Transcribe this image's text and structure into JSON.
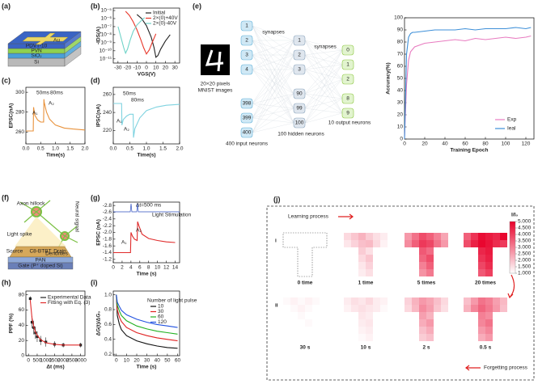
{
  "panel_labels": [
    "(a)",
    "(b)",
    "(c)",
    "(d)",
    "(e)",
    "(f)",
    "(g)",
    "(h)",
    "(i)",
    "(j)"
  ],
  "device": {
    "layers": [
      "Si",
      "SiO₂",
      "PVN",
      "PDVT-10"
    ],
    "electrode": "Au"
  },
  "network": {
    "image_caption": [
      "20×20 pixels",
      "MNIST images"
    ],
    "input": {
      "nodes": [
        "1",
        "2",
        "3",
        "4",
        "398",
        "399",
        "400"
      ],
      "label": "400 input neurons"
    },
    "hidden": {
      "nodes": [
        "1",
        "2",
        "3",
        "90",
        "99",
        "100"
      ],
      "label": "100 hidden neurons"
    },
    "output": {
      "nodes": [
        "0",
        "1",
        "2",
        "8",
        "9"
      ],
      "label": "10 output neurons"
    },
    "synapses": [
      "synapses",
      "synapses"
    ]
  },
  "neuron": {
    "labels": [
      "Axon hillock",
      "Light spike",
      "Neural signal",
      "Dendrites",
      "Source",
      "Drain",
      "C8-BTBT",
      "PAN",
      "Gate (P⁺ doped Si)"
    ]
  },
  "chart_data": [
    {
      "type": "line",
      "x_label": "VGS(V)",
      "y_label": "-IDS(A)",
      "log_y": true,
      "xlim": [
        -35,
        35
      ],
      "xticks": [
        -30,
        -20,
        -10,
        0,
        10,
        20,
        30
      ],
      "ylim": [
        3e-12,
        2e-05
      ],
      "yticks": [
        {
          "value": 1e-05,
          "label": "10⁻⁵"
        },
        {
          "value": 1e-06,
          "label": "10⁻⁶"
        },
        {
          "value": 1e-07,
          "label": "10⁻⁷"
        },
        {
          "value": 1e-08,
          "label": "10⁻⁸"
        },
        {
          "value": 1e-09,
          "label": "10⁻⁹"
        },
        {
          "value": 1e-10,
          "label": "10⁻¹⁰"
        },
        {
          "value": 1e-11,
          "label": "10⁻¹¹"
        }
      ],
      "series": [
        {
          "name": "Initial",
          "color": "#222222",
          "x": [
            -10,
            -5,
            0,
            5,
            8,
            10,
            12,
            15,
            20,
            25
          ],
          "values": [
            3.2e-06,
            1e-06,
            1.3e-07,
            5e-09,
            2.5e-10,
            1.6e-11,
            2.5e-11,
            1.6e-10,
            1.6e-09,
            1e-08
          ]
        },
        {
          "name": "2×(0)+40V",
          "color": "#e8372a",
          "x": [
            -22,
            -18,
            -14,
            -10,
            -6,
            -3,
            0,
            3,
            6,
            10
          ],
          "values": [
            7.9e-06,
            2.5e-06,
            4e-07,
            4e-08,
            2.5e-09,
            2.5e-10,
            4e-11,
            1.3e-10,
            1e-09,
            1.3e-08
          ]
        },
        {
          "name": "2×(0)-40V",
          "color": "#6fd3c8",
          "x": [
            -30,
            -27,
            -24,
            -22,
            -20,
            -17,
            -14,
            -10,
            -5,
            -2
          ],
          "values": [
            1e-07,
            5e-09,
            2.5e-10,
            5e-11,
            1.6e-10,
            2.5e-09,
            2.5e-08,
            1.6e-07,
            6.3e-07,
            1.3e-06
          ]
        }
      ]
    },
    {
      "type": "line",
      "x_label": "Time(s)",
      "y_label": "EPSC(nA)",
      "xlim": [
        0,
        2
      ],
      "xticks": [
        {
          "value": 0,
          "label": "0.0"
        },
        0.5,
        {
          "value": 1,
          "label": "1.0"
        },
        1.5,
        {
          "value": 2,
          "label": "2.0"
        }
      ],
      "ylim": [
        248,
        305
      ],
      "yticks": [
        260,
        280,
        300
      ],
      "annotations": [
        "50ms",
        "80ms",
        "A₁",
        "A₂"
      ],
      "series": [
        {
          "color": "#e8913a",
          "x": [
            0,
            0.2,
            0.25,
            0.26,
            0.3,
            0.4,
            0.5,
            0.6,
            0.61,
            0.62,
            0.7,
            0.8,
            1.0,
            1.3,
            1.6,
            2.0
          ],
          "values": [
            261,
            261,
            261,
            285,
            277,
            272,
            270,
            270,
            293,
            290,
            280,
            273,
            267,
            264,
            263,
            262
          ]
        }
      ]
    },
    {
      "type": "line",
      "x_label": "Time(s)",
      "y_label": "IPSC(nA)",
      "xlim": [
        0,
        2
      ],
      "xticks": [
        {
          "value": 0,
          "label": "0.0"
        },
        0.5,
        {
          "value": 1,
          "label": "1.0"
        },
        1.5,
        {
          "value": 2,
          "label": "2.0"
        }
      ],
      "ylim": [
        205,
        268
      ],
      "yticks": [
        220,
        240,
        260
      ],
      "annotations": [
        "50ms",
        "80ms",
        "A₁",
        "A₂"
      ],
      "series": [
        {
          "color": "#7fd3e0",
          "x": [
            0,
            0.2,
            0.25,
            0.26,
            0.3,
            0.4,
            0.5,
            0.6,
            0.61,
            0.65,
            0.8,
            1.0,
            1.3,
            1.6,
            2.0
          ],
          "values": [
            250,
            250,
            250,
            226,
            232,
            236,
            238,
            238,
            212,
            222,
            234,
            242,
            246,
            248,
            249
          ]
        }
      ]
    },
    {
      "type": "line",
      "x_label": "Training Epoch",
      "y_label": "Accuracy(%)",
      "xlim": [
        0,
        128
      ],
      "xticks": [
        0,
        20,
        40,
        60,
        80,
        100,
        120
      ],
      "ylim": [
        0,
        100
      ],
      "yticks": [
        0,
        10,
        20,
        30,
        40,
        50,
        60,
        70,
        80,
        90,
        100
      ],
      "series": [
        {
          "name": "Exp",
          "color": "#e87bc0",
          "x": [
            0,
            2,
            4,
            6,
            8,
            10,
            20,
            30,
            40,
            50,
            60,
            70,
            80,
            90,
            100,
            110,
            120,
            125
          ],
          "values": [
            0,
            45,
            65,
            72,
            74,
            76,
            79,
            80,
            81,
            82,
            81,
            83,
            82,
            83,
            84,
            83,
            84,
            85
          ]
        },
        {
          "name": "Ieal",
          "color": "#3d8fd8",
          "x": [
            0,
            2,
            4,
            6,
            8,
            10,
            20,
            30,
            40,
            50,
            60,
            70,
            80,
            90,
            100,
            110,
            120,
            125
          ],
          "values": [
            0,
            70,
            84,
            87,
            88,
            88,
            89,
            90,
            90,
            90,
            91,
            90,
            91,
            91,
            91,
            92,
            91,
            92
          ]
        }
      ]
    },
    {
      "type": "line",
      "x_label": "Time (s)",
      "y_label": "EPSC (nA)",
      "xlim": [
        0,
        15
      ],
      "xticks": [
        0,
        2,
        4,
        6,
        8,
        10,
        12,
        14
      ],
      "ylim": [
        -1.1,
        -2.9
      ],
      "yticks": [
        -2.8,
        -2.6,
        -2.4,
        -2.2,
        {
          "value": -2,
          "label": "-2.0"
        },
        -1.8,
        -1.6,
        -1.4,
        -1.2
      ],
      "annotations": [
        "Δt=500 ms",
        "Light Stimulation",
        "A₁",
        "A₂"
      ],
      "series": [
        {
          "color": "#e02b2b",
          "x": [
            0,
            2,
            3.9,
            4,
            4.3,
            4.8,
            5.4,
            5.5,
            5.8,
            6.5,
            8,
            10,
            12,
            14
          ],
          "values": [
            -1.4,
            -1.4,
            -1.4,
            -2.0,
            -1.9,
            -1.8,
            -1.76,
            -2.32,
            -2.2,
            -1.95,
            -1.82,
            -1.76,
            -1.72,
            -1.7
          ]
        }
      ]
    },
    {
      "type": "line",
      "x_label": "Δt (ms)",
      "y_label": "PPF (%)",
      "xlim": [
        -150,
        3250
      ],
      "xticks": [
        0,
        500,
        1000,
        1500,
        2000,
        2500,
        3000
      ],
      "ylim": [
        0,
        85
      ],
      "yticks": [
        0,
        20,
        40,
        60,
        80
      ],
      "series": [
        {
          "name": "Experimental Data",
          "type": "scatter",
          "color": "#222222",
          "x": [
            100,
            200,
            300,
            400,
            500,
            700,
            1000,
            1500,
            2000,
            3000
          ],
          "values": [
            75,
            44,
            37,
            30,
            25,
            20,
            18,
            15,
            14,
            14
          ],
          "errors": [
            3,
            8,
            9,
            8,
            7,
            6,
            6,
            4,
            3,
            3
          ]
        },
        {
          "name": "Fitting with Eq. (3)",
          "color": "#e02b2b",
          "x": [
            100,
            200,
            300,
            400,
            500,
            700,
            1000,
            1500,
            2000,
            2500,
            3000
          ],
          "values": [
            73,
            50,
            38,
            31,
            27,
            21,
            17,
            15,
            14,
            14,
            14
          ]
        }
      ]
    },
    {
      "type": "line",
      "x_label": "Time (s)",
      "y_label": "ΔG(t)/ΔG₀",
      "legend_title": "Number of light pulse",
      "xlim": [
        -3,
        62
      ],
      "xticks": [
        0,
        10,
        20,
        30,
        40,
        50,
        60
      ],
      "ylim": [
        0.18,
        1.05
      ],
      "yticks": [
        0.2,
        0.4,
        0.6,
        0.8,
        {
          "value": 1,
          "label": "1.0"
        }
      ],
      "series": [
        {
          "name": "10",
          "color": "#111111",
          "x": [
            0,
            1,
            3,
            5,
            10,
            20,
            30,
            40,
            50,
            60
          ],
          "values": [
            1.0,
            0.72,
            0.6,
            0.53,
            0.45,
            0.38,
            0.34,
            0.31,
            0.29,
            0.28
          ]
        },
        {
          "name": "30",
          "color": "#e02020",
          "x": [
            0,
            1,
            3,
            5,
            10,
            20,
            30,
            40,
            50,
            60
          ],
          "values": [
            1.0,
            0.8,
            0.7,
            0.64,
            0.56,
            0.49,
            0.45,
            0.42,
            0.4,
            0.38
          ]
        },
        {
          "name": "60",
          "color": "#20b020",
          "x": [
            0,
            1,
            3,
            5,
            10,
            20,
            30,
            40,
            50,
            60
          ],
          "values": [
            1.0,
            0.86,
            0.78,
            0.72,
            0.65,
            0.58,
            0.54,
            0.51,
            0.49,
            0.47
          ]
        },
        {
          "name": "120",
          "color": "#2050e0",
          "x": [
            0,
            1,
            3,
            5,
            10,
            20,
            30,
            40,
            50,
            60
          ],
          "values": [
            1.0,
            0.9,
            0.84,
            0.79,
            0.73,
            0.67,
            0.63,
            0.6,
            0.58,
            0.56
          ]
        }
      ]
    },
    {
      "type": "heatmap",
      "annotations": [
        "Learning process",
        "Forgetting process"
      ],
      "rows": [
        "i",
        "ii"
      ],
      "colorbar_label": "I/I₀",
      "clim": [
        1,
        5
      ],
      "colors": [
        "#ffffff",
        "#e8002a"
      ],
      "cticks": [
        {
          "value": 1,
          "label": "1.000"
        },
        {
          "value": 1.5,
          "label": "1.500"
        },
        {
          "value": 2,
          "label": "2.000"
        },
        {
          "value": 2.5,
          "label": "2.500"
        },
        {
          "value": 3,
          "label": "3.000"
        },
        {
          "value": 3.5,
          "label": "3.500"
        },
        {
          "value": 4,
          "label": "4.000"
        },
        {
          "value": 4.5,
          "label": "4.500"
        },
        {
          "value": 5,
          "label": "5.000"
        }
      ],
      "images": [
        {
          "label": "0 time",
          "values": [
            1,
            1,
            1,
            1,
            1,
            1,
            1,
            1,
            1,
            1,
            1,
            1,
            1,
            1,
            1,
            1,
            1,
            1,
            1,
            1
          ]
        },
        {
          "label": "1 time",
          "values": [
            1.6,
            1.9,
            2.2,
            1.8,
            1.5,
            1.3,
            1.4,
            1.7,
            2.0,
            2.1,
            1.6,
            1.2,
            1.8,
            1.5,
            1.6,
            1.9,
            1.4,
            1.7,
            1.3,
            1.5
          ]
        },
        {
          "label": "5 times",
          "values": [
            2.6,
            3.2,
            3.8,
            3.5,
            3.0,
            2.4,
            2.8,
            3.5,
            4.1,
            3.9,
            3.2,
            2.6,
            3.6,
            3.3,
            3.4,
            3.8,
            3.0,
            3.5,
            2.7,
            3.1
          ]
        },
        {
          "label": "20 times",
          "values": [
            3.5,
            4.2,
            4.8,
            4.6,
            4.4,
            4.9,
            3.8,
            4.5,
            4.9,
            4.7,
            4.3,
            4.1,
            4.4,
            4.6,
            4.2,
            4.5,
            3.9,
            4.3,
            3.6,
            4.0
          ]
        },
        {
          "label": "30 s",
          "values": [
            1.1,
            1.2,
            1.1,
            1.2,
            1.1,
            1.0,
            1.0,
            1.1,
            1.2,
            1.1,
            1.0,
            1.0,
            1.1,
            1.0,
            1.0,
            1.1,
            1.0,
            1.0,
            1.0,
            1.0
          ]
        },
        {
          "label": "10 s",
          "values": [
            1.3,
            1.5,
            1.4,
            1.6,
            1.3,
            1.2,
            1.2,
            1.4,
            1.5,
            1.4,
            1.3,
            1.1,
            1.4,
            1.3,
            1.3,
            1.4,
            1.2,
            1.3,
            1.1,
            1.2
          ]
        },
        {
          "label": "2 s",
          "values": [
            1.7,
            2.2,
            2.6,
            2.4,
            2.0,
            1.6,
            1.6,
            2.1,
            2.8,
            2.5,
            1.9,
            1.5,
            2.5,
            2.2,
            2.3,
            2.6,
            2.0,
            2.3,
            1.8,
            2.0
          ]
        },
        {
          "label": "0.5 s",
          "values": [
            2.0,
            2.6,
            3.2,
            3.0,
            2.5,
            2.1,
            2.2,
            2.9,
            3.4,
            3.1,
            2.6,
            2.0,
            3.0,
            2.8,
            2.9,
            3.2,
            2.6,
            2.9,
            2.3,
            2.6
          ]
        }
      ]
    }
  ]
}
